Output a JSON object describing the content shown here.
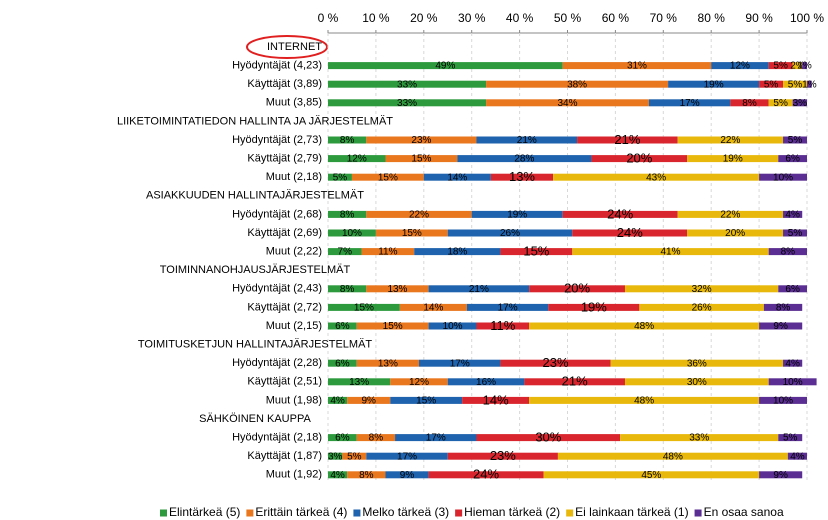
{
  "chart_data": {
    "type": "stacked-bar-horizontal",
    "grid": true,
    "xlim": [
      0,
      100
    ],
    "xticks": [
      {
        "value": 0,
        "label": "0 %"
      },
      {
        "value": 10,
        "label": "10 %"
      },
      {
        "value": 20,
        "label": "20 %"
      },
      {
        "value": 30,
        "label": "30 %"
      },
      {
        "value": 40,
        "label": "40 %"
      },
      {
        "value": 50,
        "label": "50 %"
      },
      {
        "value": 60,
        "label": "60 %"
      },
      {
        "value": 70,
        "label": "70 %"
      },
      {
        "value": 80,
        "label": "80 %"
      },
      {
        "value": 90,
        "label": "90 %"
      },
      {
        "value": 100,
        "label": "100 %"
      }
    ],
    "categories": [
      "INTERNET",
      "Hyödyntäjät (4,23)",
      "Käyttäjät (3,89)",
      "Muut (3,85)",
      "LIIKETOIMINTATIEDON HALLINTA JA JÄRJESTELMÄT",
      "Hyödyntäjät (2,73)",
      "Käyttäjät (2,79)",
      "Muut (2,18)",
      "ASIAKKUUDEN HALLINTAJÄRJESTELMÄT",
      "Hyödyntäjät (2,68)",
      "Käyttäjät (2,69)",
      "Muut (2,22)",
      "TOIMINNANOHJAUSJÄRJESTELMÄT",
      "Hyödyntäjät (2,43)",
      "Käyttäjät (2,72)",
      "Muut (2,15)",
      "TOIMITUSKETJUN HALLINTAJÄRJESTELMÄT",
      "Hyödyntäjät (2,28)",
      "Käyttäjät (2,51)",
      "Muut (1,98)",
      "SÄHKÖINEN KAUPPA",
      "Hyödyntäjät (2,18)",
      "Käyttäjät (1,87)",
      "Muut (1,92)"
    ],
    "series": [
      {
        "name": "Elintärkeä (5)",
        "color": "#2e9a3e",
        "values": [
          null,
          49,
          33,
          33,
          null,
          8,
          12,
          5,
          null,
          8,
          10,
          7,
          null,
          8,
          15,
          6,
          null,
          6,
          13,
          4,
          null,
          6,
          3,
          4
        ],
        "value_labels": [
          null,
          "49%",
          "33%",
          "33%",
          null,
          "8%",
          "12%",
          "5%",
          null,
          "8%",
          "10%",
          "7%",
          null,
          "8%",
          "15%",
          "6%",
          null,
          "6%",
          "13%",
          "4%",
          null,
          "6%",
          "3%",
          "4%"
        ]
      },
      {
        "name": "Erittäin tärkeä (4)",
        "color": "#e8771e",
        "values": [
          null,
          31,
          38,
          34,
          null,
          23,
          15,
          15,
          null,
          22,
          15,
          11,
          null,
          13,
          14,
          15,
          null,
          13,
          12,
          9,
          null,
          8,
          5,
          8
        ],
        "value_labels": [
          null,
          "31%",
          "38%",
          "34%",
          null,
          "23%",
          "15%",
          "15%",
          null,
          "22%",
          "15%",
          "11%",
          null,
          "13%",
          "14%",
          "15%",
          null,
          "13%",
          "12%",
          "9%",
          null,
          "8%",
          "5%",
          "8%"
        ]
      },
      {
        "name": "Melko tärkeä (3)",
        "color": "#1f62ad",
        "values": [
          null,
          12,
          19,
          17,
          null,
          21,
          28,
          14,
          null,
          19,
          26,
          18,
          null,
          21,
          17,
          10,
          null,
          17,
          16,
          15,
          null,
          17,
          17,
          9
        ],
        "value_labels": [
          null,
          "12%",
          "19%",
          "17%",
          null,
          "21%",
          "28%",
          "14%",
          null,
          "19%",
          "26%",
          "18%",
          null,
          "21%",
          "17%",
          "10%",
          null,
          "17%",
          "16%",
          "15%",
          null,
          "17%",
          "17%",
          "9%"
        ]
      },
      {
        "name": "Hieman tärkeä (2)",
        "color": "#d9262e",
        "values": [
          null,
          5,
          5,
          8,
          null,
          21,
          20,
          13,
          null,
          24,
          24,
          15,
          null,
          20,
          19,
          11,
          null,
          23,
          21,
          14,
          null,
          30,
          23,
          24
        ],
        "value_labels": [
          null,
          "5%",
          "5%",
          "8%",
          null,
          "21%",
          "20%",
          "13%",
          null,
          "24%",
          "24%",
          "15%",
          null,
          "20%",
          "19%",
          "11%",
          null,
          "23%",
          "21%",
          "14%",
          null,
          "30%",
          "23%",
          "24%"
        ]
      },
      {
        "name": "Ei lainkaan tärkeä (1)",
        "color": "#e8b90c",
        "values": [
          null,
          2,
          5,
          5,
          null,
          22,
          19,
          43,
          null,
          22,
          20,
          41,
          null,
          32,
          26,
          48,
          null,
          36,
          30,
          48,
          null,
          33,
          48,
          45
        ],
        "value_labels": [
          null,
          "2%",
          "5%",
          "5%",
          null,
          "22%",
          "19%",
          "43%",
          null,
          "22%",
          "20%",
          "41%",
          null,
          "32%",
          "26%",
          "48%",
          null,
          "36%",
          "30%",
          "48%",
          null,
          "33%",
          "48%",
          "45%"
        ]
      },
      {
        "name": "En osaa sanoa",
        "color": "#5a2e92",
        "values": [
          null,
          1,
          1,
          3,
          null,
          5,
          6,
          10,
          null,
          4,
          5,
          8,
          null,
          6,
          8,
          9,
          null,
          4,
          10,
          10,
          null,
          5,
          4,
          9
        ],
        "value_labels": [
          null,
          "1%",
          "1%",
          "3%",
          null,
          "5%",
          "6%",
          "10%",
          null,
          "4%",
          "5%",
          "8%",
          null,
          "6%",
          "8%",
          "9%",
          null,
          "4%",
          "10%",
          "10%",
          null,
          "5%",
          "4%",
          "9%"
        ]
      }
    ]
  }
}
